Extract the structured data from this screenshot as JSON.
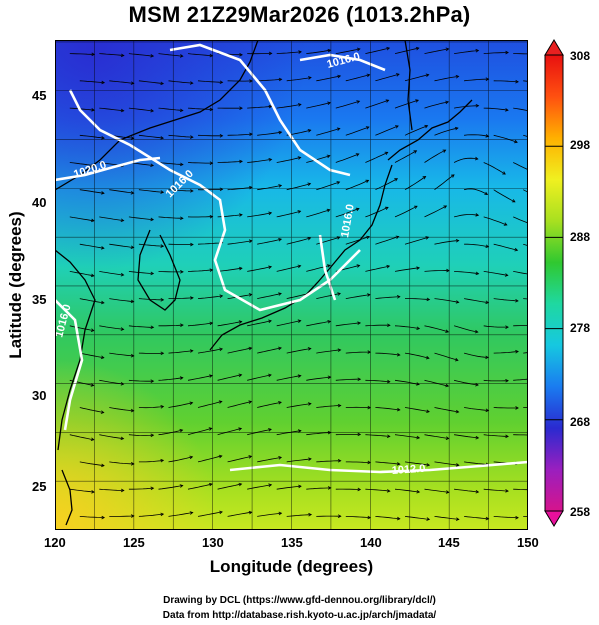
{
  "title": "MSM 21Z29Mar2026 (1013.2hPa)",
  "x_axis": {
    "label": "Longitude (degrees)",
    "ticks": [
      "120",
      "125",
      "130",
      "135",
      "140",
      "145",
      "150"
    ],
    "range": [
      120,
      150
    ]
  },
  "y_axis": {
    "label": "Latitude  (degrees)",
    "ticks": [
      "25",
      "30",
      "35",
      "40",
      "45"
    ],
    "range": [
      22.5,
      47.6
    ]
  },
  "colorbar": {
    "ticks": [
      "308",
      "298",
      "288",
      "278",
      "268",
      "258"
    ],
    "range": [
      258,
      308
    ],
    "colors": [
      "#d6148c",
      "#9a1fbf",
      "#2a2ad0",
      "#1a7cf0",
      "#16c8e0",
      "#1fd8a0",
      "#30c830",
      "#a8e020",
      "#f0f020",
      "#ffb000",
      "#ff5010",
      "#e81010"
    ]
  },
  "isobars": [
    {
      "label": "1016.0"
    },
    {
      "label": "1020.0"
    },
    {
      "label": "1016.0"
    },
    {
      "label": "1016.0"
    },
    {
      "label": "1016.0"
    },
    {
      "label": "1012.0"
    }
  ],
  "colors": {
    "coastline": "#000000",
    "isobar": "#ffffff",
    "streamline": "#000000",
    "grid": "#000000"
  },
  "footer": {
    "line1": "Drawing by DCL (https://www.gfd-dennou.org/library/dcl/)",
    "line2": "Data from http://database.rish.kyoto-u.ac.jp/arch/jmadata/"
  }
}
